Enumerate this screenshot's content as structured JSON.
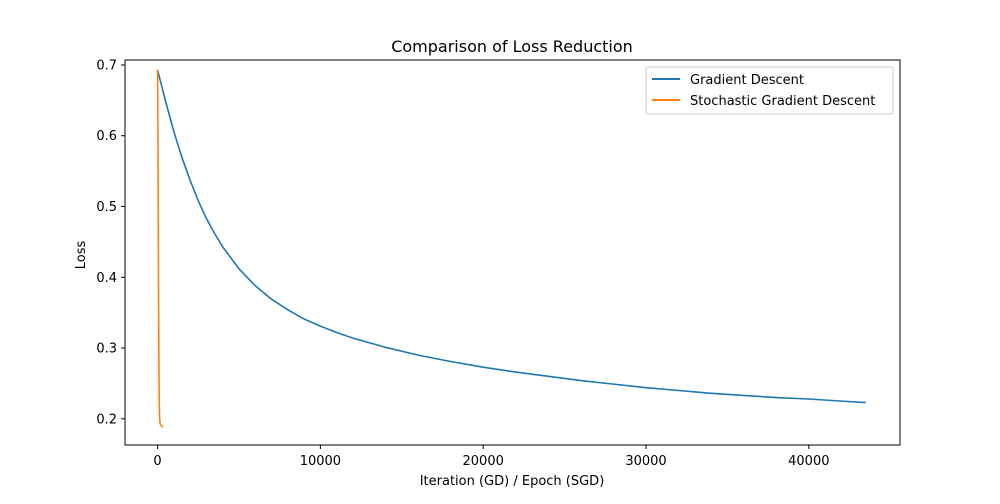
{
  "chart_data": {
    "type": "line",
    "title": "Comparison of Loss Reduction",
    "xlabel": "Iteration (GD) / Epoch (SGD)",
    "ylabel": "Loss",
    "xlim": [
      -2000,
      45600
    ],
    "ylim": [
      0.163,
      0.707
    ],
    "xticks": [
      0,
      10000,
      20000,
      30000,
      40000
    ],
    "xtick_labels": [
      "0",
      "10000",
      "20000",
      "30000",
      "40000"
    ],
    "yticks": [
      0.2,
      0.3,
      0.4,
      0.5,
      0.6,
      0.7
    ],
    "ytick_labels": [
      "0.2",
      "0.3",
      "0.4",
      "0.5",
      "0.6",
      "0.7"
    ],
    "grid": false,
    "legend_position": "top-right",
    "series": [
      {
        "name": "Gradient Descent",
        "color": "#1f77b4",
        "x": [
          0,
          500,
          1000,
          1500,
          2000,
          2500,
          3000,
          3500,
          4000,
          5000,
          6000,
          7000,
          8000,
          9000,
          10000,
          11000,
          12000,
          14000,
          16000,
          18000,
          20000,
          22000,
          24000,
          26000,
          28000,
          30000,
          32000,
          34000,
          36000,
          38000,
          40000,
          42000,
          43500
        ],
        "y": [
          0.693,
          0.648,
          0.606,
          0.569,
          0.537,
          0.508,
          0.483,
          0.462,
          0.443,
          0.412,
          0.388,
          0.369,
          0.354,
          0.341,
          0.331,
          0.322,
          0.314,
          0.301,
          0.29,
          0.281,
          0.273,
          0.266,
          0.26,
          0.254,
          0.249,
          0.244,
          0.24,
          0.236,
          0.233,
          0.23,
          0.228,
          0.225,
          0.223
        ]
      },
      {
        "name": "Stochastic Gradient Descent",
        "color": "#ff7f0e",
        "x": [
          0,
          20,
          40,
          60,
          80,
          100,
          120,
          140,
          160,
          200,
          250,
          300,
          350
        ],
        "y": [
          0.693,
          0.62,
          0.5,
          0.38,
          0.29,
          0.23,
          0.205,
          0.196,
          0.193,
          0.191,
          0.19,
          0.189,
          0.189
        ]
      }
    ]
  }
}
